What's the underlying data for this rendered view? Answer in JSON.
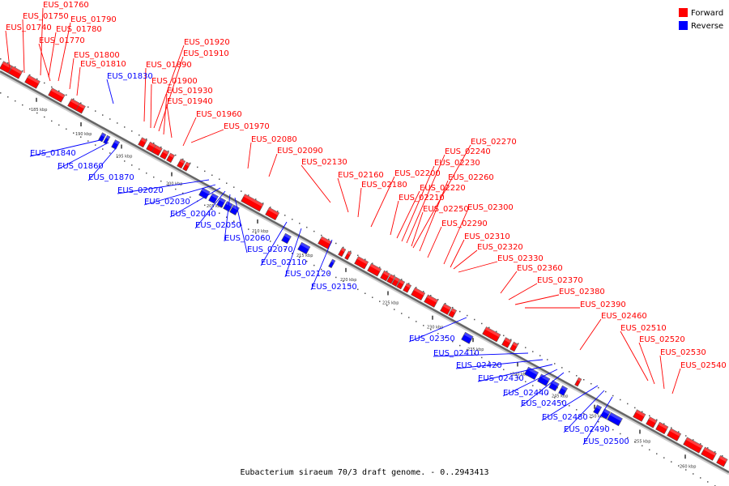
{
  "colors": {
    "forward": "#ff0000",
    "reverse": "#0000ff",
    "backbone": "#888888"
  },
  "legend": [
    {
      "label": "Forward",
      "color": "#ff0000"
    },
    {
      "label": "Reverse",
      "color": "#0000ff"
    }
  ],
  "caption": "Eubacterium siraeum 70/3 draft genome. - 0..2943413",
  "ticks": [
    "185 kbp",
    "190 kbp",
    "195 kbp",
    "200 kbp",
    "205 kbp",
    "210 kbp",
    "215 kbp",
    "220 kbp",
    "225 kbp",
    "230 kbp",
    "235 kbp",
    "240 kbp",
    "245 kbp",
    "250 kbp",
    "255 kbp",
    "260 kbp"
  ],
  "forward_genes": [
    "EUS_01740",
    "EUS_01750",
    "EUS_01760",
    "EUS_01770",
    "EUS_01780",
    "EUS_01790",
    "EUS_01800",
    "EUS_01810",
    "EUS_01890",
    "EUS_01900",
    "EUS_01910",
    "EUS_01920",
    "EUS_01930",
    "EUS_01940",
    "EUS_01960",
    "EUS_01970",
    "EUS_02080",
    "EUS_02090",
    "EUS_02130",
    "EUS_02160",
    "EUS_02180",
    "EUS_02200",
    "EUS_02210",
    "EUS_02220",
    "EUS_02230",
    "EUS_02240",
    "EUS_02250",
    "EUS_02260",
    "EUS_02270",
    "EUS_02290",
    "EUS_02300",
    "EUS_02310",
    "EUS_02320",
    "EUS_02330",
    "EUS_02360",
    "EUS_02370",
    "EUS_02380",
    "EUS_02390",
    "EUS_02460",
    "EUS_02510",
    "EUS_02520",
    "EUS_02530",
    "EUS_02540"
  ],
  "reverse_genes": [
    "EUS_01830",
    "EUS_01840",
    "EUS_01860",
    "EUS_01870",
    "EUS_02020",
    "EUS_02030",
    "EUS_02040",
    "EUS_02050",
    "EUS_02060",
    "EUS_02070",
    "EUS_02110",
    "EUS_02120",
    "EUS_02150",
    "EUS_02350",
    "EUS_02410",
    "EUS_02420",
    "EUS_02430",
    "EUS_02440",
    "EUS_02450",
    "EUS_02480",
    "EUS_02490",
    "EUS_02500"
  ]
}
